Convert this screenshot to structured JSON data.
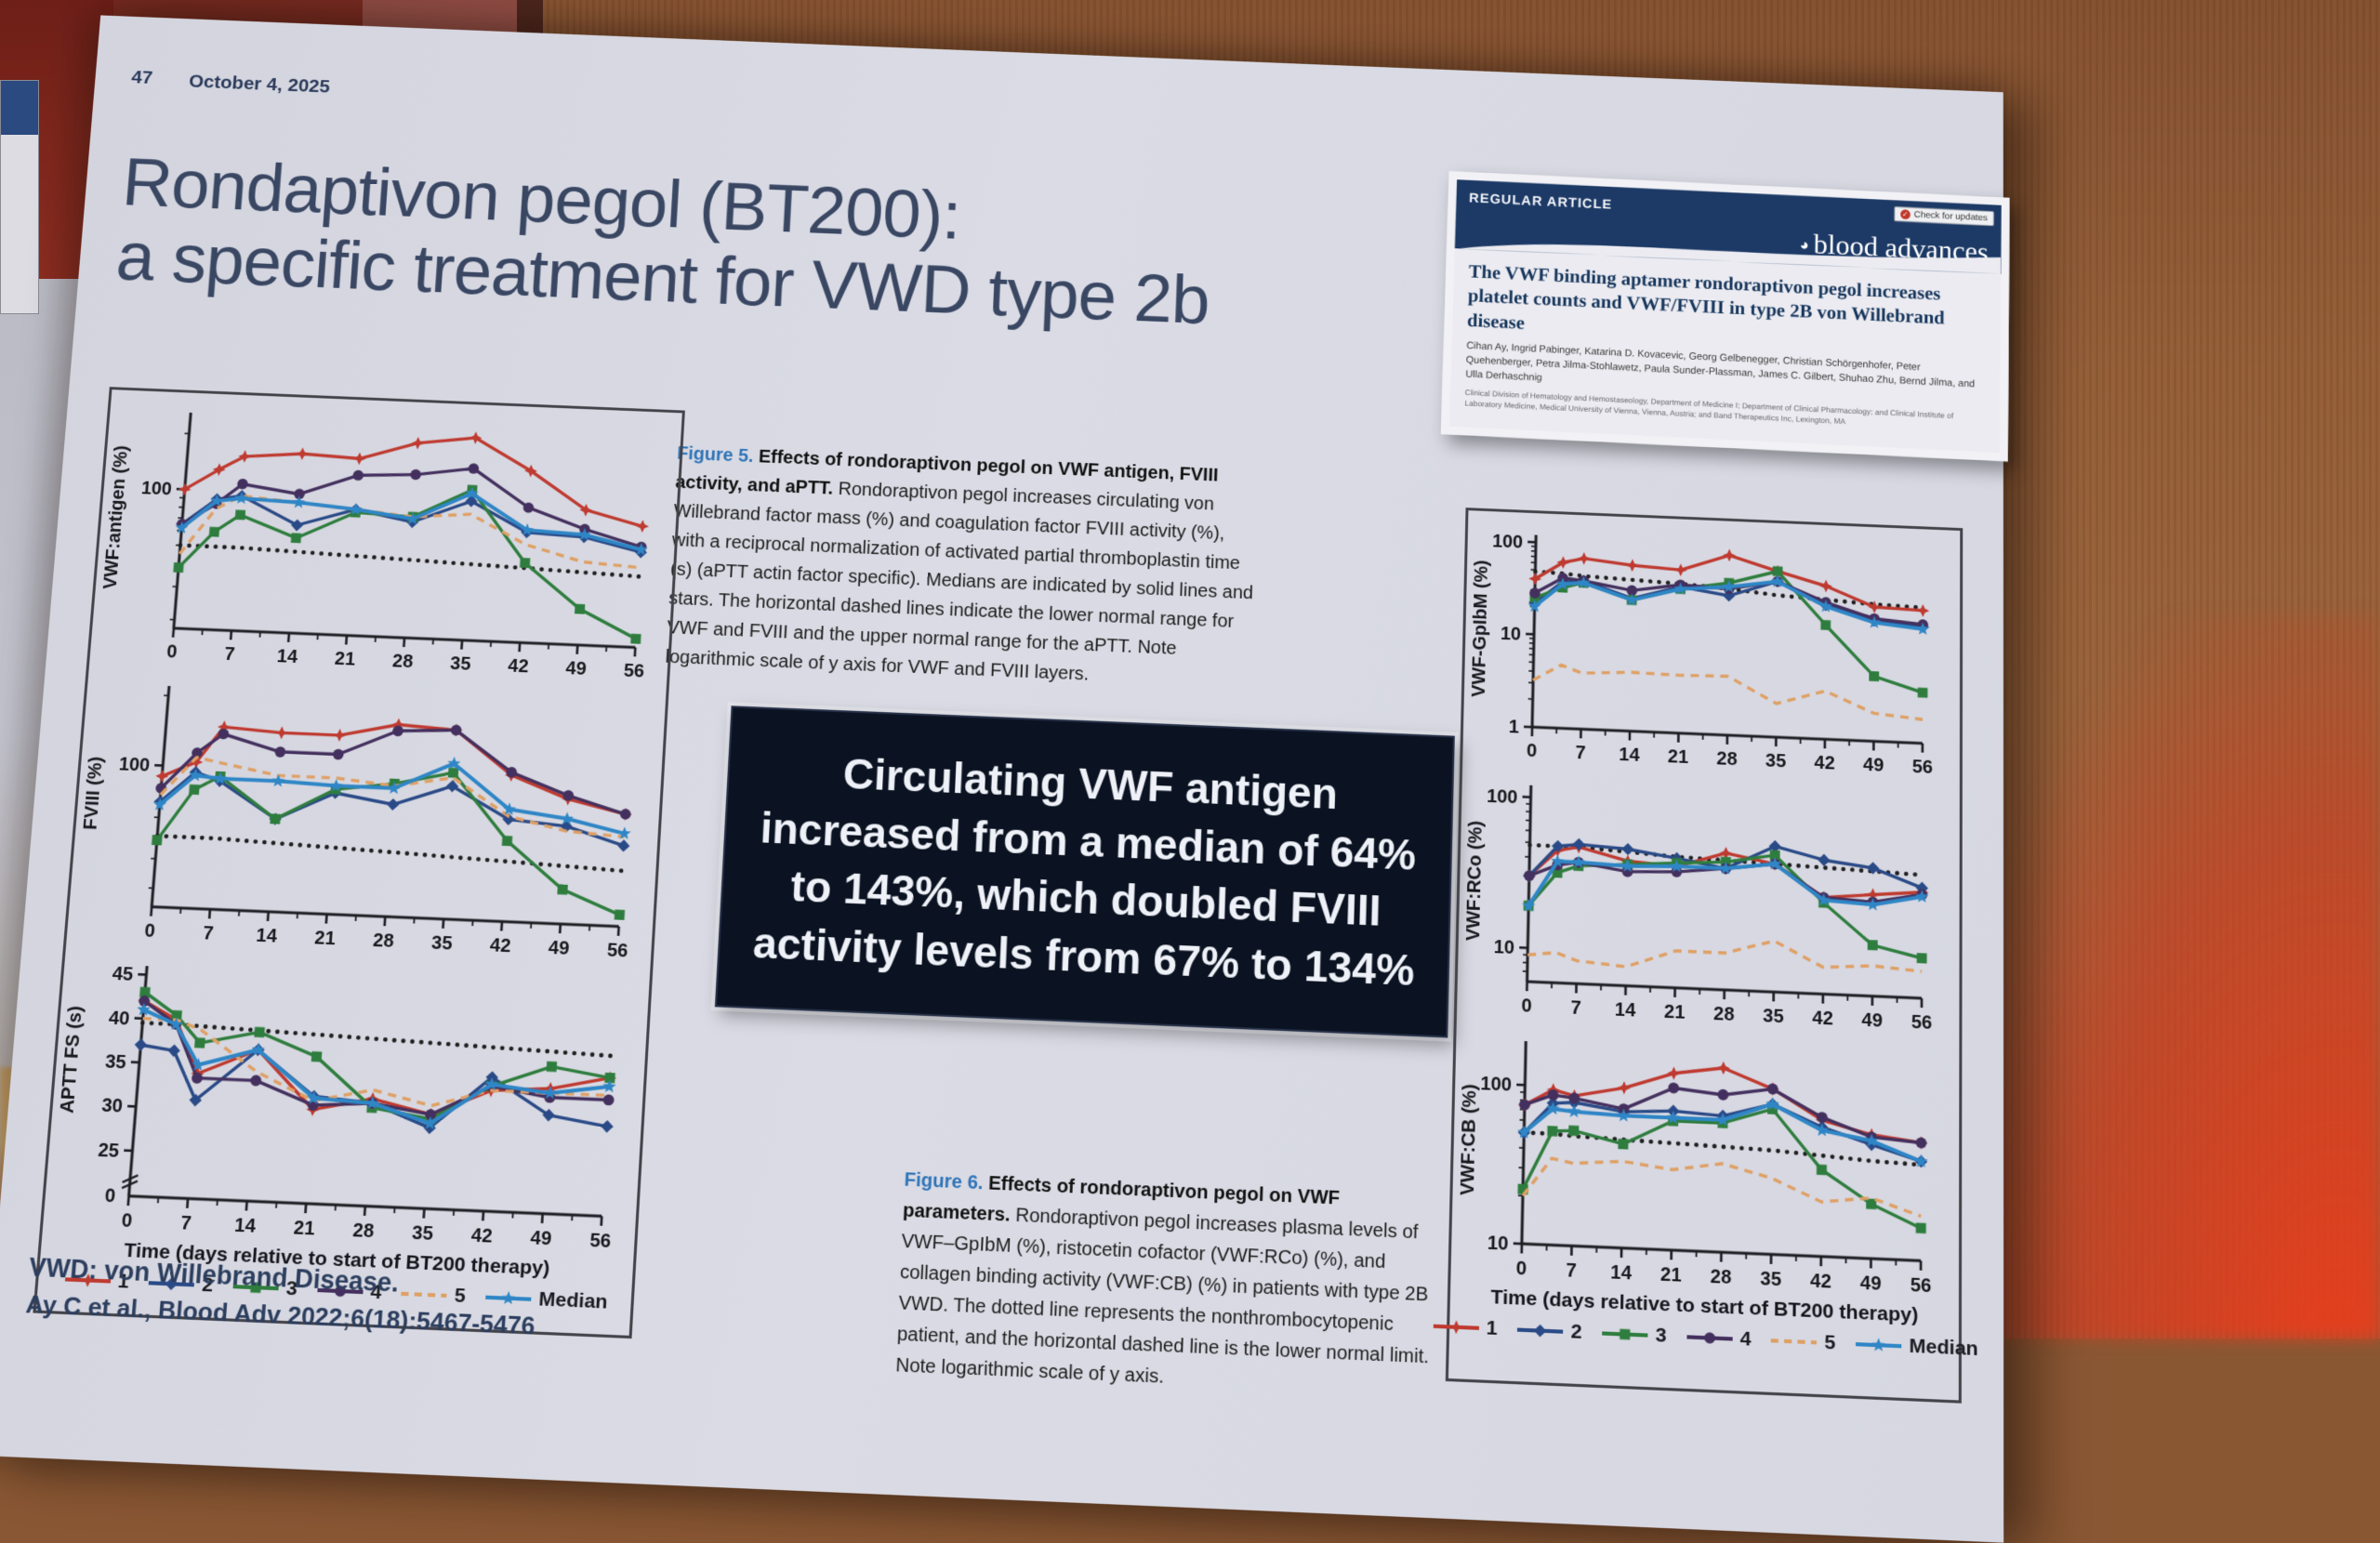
{
  "slide": {
    "number": "47",
    "date": "October 4, 2025",
    "title_line1": "Rondaptivon pegol (BT200):",
    "title_line2": "a specific treatment for VWD type 2b",
    "footnote1": "VWD: von Willebrand Disease.",
    "footnote2": "Ay C et al., Blood Adv 2022;6(18):5467-5476"
  },
  "journal_card": {
    "kicker": "REGULAR ARTICLE",
    "brand": "blood advances",
    "badge": "Check for updates",
    "title": "The VWF binding aptamer rondoraptivon pegol increases platelet counts and VWF/FVIII in type 2B von Willebrand disease",
    "authors": "Cihan Ay, Ingrid Pabinger, Katarina D. Kovacevic, Georg Gelbenegger, Christian Schörgenhofer, Peter Quehenberger, Petra Jilma-Stohlawetz, Paula Sunder-Plassman, James C. Gilbert, Shuhao Zhu, Bernd Jilma, and Ulla Derhaschnig",
    "affiliations": "Clinical Division of Hematology and Hemostaseology, Department of Medicine I; Department of Clinical Pharmacology; and Clinical Institute of Laboratory Medicine, Medical University of Vienna, Vienna, Austria; and Band Therapeutics Inc, Lexington, MA"
  },
  "figure5_caption": {
    "label": "Figure 5. ",
    "heading": "Effects of rondoraptivon pegol on VWF antigen, FVIII activity, and aPTT. ",
    "body": "Rondoraptivon pegol increases circulating von Willebrand factor mass (%) and coagulation factor FVIII activity (%), with a reciprocal normalization of activated partial thromboplastin time (s) (aPTT actin factor specific). Medians are indicated by solid lines and stars. The horizontal dashed lines indicate the lower normal range for VWF and FVIII and the upper normal range for the aPTT. Note logarithmic scale of y axis for VWF and FVIII layers."
  },
  "figure6_caption": {
    "label": "Figure 6. ",
    "heading": "Effects of rondoraptivon pegol on VWF parameters. ",
    "body": "Rondoraptivon pegol increases plasma levels of VWF–GpIbM (%), ristocetin cofactor (VWF:RCo) (%), and collagen binding activity (VWF:CB) (%) in patients with type 2B VWD. The dotted line represents the nonthrombocytopenic patient, and the horizontal dashed line is the lower normal limit. Note logarithmic scale of y axis."
  },
  "callout": {
    "text": "Circulating VWF antigen increased from a median of 64% to 143%, which doubled FVIII activity levels from 67% to 134%"
  },
  "charts": {
    "x_axis_label": "Time (days relative to start of BT200 therapy)",
    "x": [
      0,
      4,
      7,
      14,
      21,
      28,
      35,
      42,
      49,
      56
    ],
    "xticks": [
      0,
      7,
      14,
      21,
      28,
      35,
      42,
      49,
      56
    ]
  },
  "legend": {
    "items": [
      {
        "label": "1",
        "color": "#bf3a30",
        "marker": "burst",
        "dashed": false
      },
      {
        "label": "2",
        "color": "#2a4a87",
        "marker": "diamond",
        "dashed": false
      },
      {
        "label": "3",
        "color": "#2f7d3e",
        "marker": "square",
        "dashed": false
      },
      {
        "label": "4",
        "color": "#44305e",
        "marker": "circle",
        "dashed": false
      },
      {
        "label": "5",
        "color": "#dfa065",
        "marker": "none",
        "dashed": true
      },
      {
        "label": "Median",
        "color": "#2f86c6",
        "marker": "star",
        "dashed": false
      }
    ]
  },
  "chart_data": [
    {
      "container": "c-antigen",
      "type": "line",
      "ylabel": "VWF:antigen (%)",
      "scale": "log",
      "ylim": [
        18,
        260
      ],
      "yticks": [
        100
      ],
      "ref_dotted": [
        50,
        50,
        50,
        49,
        48,
        47,
        46,
        45,
        44,
        43
      ],
      "series": [
        {
          "name": "1",
          "values": [
            100,
            130,
            155,
            165,
            160,
            200,
            220,
            150,
            95,
            80
          ]
        },
        {
          "name": "2",
          "values": [
            65,
            90,
            95,
            68,
            85,
            75,
            100,
            70,
            68,
            58
          ]
        },
        {
          "name": "3",
          "values": [
            38,
            60,
            75,
            58,
            82,
            80,
            115,
            48,
            28,
            20
          ]
        },
        {
          "name": "4",
          "values": [
            65,
            85,
            110,
            100,
            130,
            135,
            150,
            95,
            75,
            62
          ]
        },
        {
          "name": "5",
          "values": [
            45,
            80,
            95,
            90,
            85,
            80,
            85,
            60,
            50,
            48
          ]
        },
        {
          "name": "Median",
          "values": [
            62,
            88,
            92,
            90,
            85,
            78,
            110,
            72,
            70,
            60
          ]
        }
      ]
    },
    {
      "container": "c-fviii",
      "type": "line",
      "ylabel": "FVIII (%)",
      "scale": "log",
      "ylim": [
        25,
        220
      ],
      "yticks": [
        100
      ],
      "ref_dotted": [
        50,
        50,
        50,
        49,
        48,
        47,
        46,
        45,
        44,
        43
      ],
      "series": [
        {
          "name": "1",
          "values": [
            90,
            105,
            150,
            145,
            145,
            165,
            160,
            105,
            85,
            75
          ]
        },
        {
          "name": "2",
          "values": [
            70,
            95,
            88,
            62,
            82,
            75,
            92,
            68,
            65,
            55
          ]
        },
        {
          "name": "3",
          "values": [
            48,
            80,
            92,
            62,
            85,
            92,
            105,
            55,
            35,
            28
          ]
        },
        {
          "name": "4",
          "values": [
            80,
            115,
            140,
            120,
            120,
            155,
            160,
            108,
            88,
            75
          ]
        },
        {
          "name": "5",
          "values": [
            75,
            110,
            105,
            95,
            95,
            90,
            100,
            70,
            62,
            60
          ]
        },
        {
          "name": "Median",
          "values": [
            68,
            92,
            90,
            90,
            88,
            88,
            115,
            75,
            70,
            62
          ]
        }
      ]
    },
    {
      "container": "c-aptt",
      "type": "line",
      "ylabel": "APTT FS (s)",
      "scale": "linear",
      "ylim": [
        24,
        46
      ],
      "yticks": [
        25,
        30,
        35,
        40,
        45
      ],
      "axis_break": true,
      "ref_dotted": [
        39.5,
        39.5,
        39.4,
        39.2,
        39.0,
        38.8,
        38.6,
        38.4,
        38.2,
        38.0
      ],
      "series": [
        {
          "name": "1",
          "values": [
            42,
            40,
            34,
            37,
            30.5,
            32,
            30.5,
            33.5,
            34,
            35.5
          ]
        },
        {
          "name": "2",
          "values": [
            37,
            36.5,
            31,
            37,
            32,
            31.5,
            29,
            35,
            31,
            30
          ]
        },
        {
          "name": "3",
          "values": [
            43,
            40.5,
            37.5,
            39,
            36.5,
            31,
            30,
            34,
            36.5,
            35.5
          ]
        },
        {
          "name": "4",
          "values": [
            42,
            39.5,
            33.5,
            33.5,
            31,
            31.5,
            30.5,
            34,
            33,
            33
          ]
        },
        {
          "name": "5",
          "values": [
            40,
            40,
            39,
            34.5,
            31.5,
            33,
            31.5,
            33.5,
            33.5,
            33.5
          ]
        },
        {
          "name": "Median",
          "values": [
            41,
            39.5,
            35,
            37,
            31.8,
            31.5,
            29.5,
            34.2,
            33.5,
            34.5
          ]
        }
      ]
    },
    {
      "container": "c-gpibm",
      "type": "line",
      "ylabel": "VWF-GpIbM (%)",
      "scale": "log",
      "ylim": [
        1,
        120
      ],
      "yticks": [
        1,
        10,
        100
      ],
      "ref_dotted": [
        48,
        47,
        45,
        43,
        41,
        38,
        34,
        32,
        30,
        29
      ],
      "series": [
        {
          "name": "1",
          "values": [
            40,
            62,
            70,
            62,
            58,
            88,
            62,
            45,
            28,
            27
          ]
        },
        {
          "name": "2",
          "values": [
            22,
            38,
            40,
            27,
            38,
            32,
            48,
            28,
            20,
            18
          ]
        },
        {
          "name": "3",
          "values": [
            25,
            33,
            38,
            26,
            36,
            44,
            62,
            17,
            5,
            3.5
          ]
        },
        {
          "name": "4",
          "values": [
            28,
            42,
            40,
            33,
            40,
            38,
            48,
            30,
            21,
            19
          ]
        },
        {
          "name": "5",
          "values": [
            3.2,
            4.8,
            4,
            4.3,
            4.2,
            4.3,
            2.3,
            3.3,
            2,
            1.8
          ]
        },
        {
          "name": "Median",
          "values": [
            20,
            36,
            38,
            26,
            36,
            40,
            48,
            27,
            19,
            17
          ]
        }
      ]
    },
    {
      "container": "c-rco",
      "type": "line",
      "ylabel": "VWF:RCo (%)",
      "scale": "log",
      "ylim": [
        6,
        120
      ],
      "yticks": [
        10,
        100
      ],
      "ref_dotted": [
        48,
        48,
        48,
        46,
        44,
        43,
        42,
        41,
        40,
        39
      ],
      "series": [
        {
          "name": "1",
          "values": [
            30,
            45,
            48,
            40,
            38,
            48,
            42,
            26,
            28,
            30
          ]
        },
        {
          "name": "2",
          "values": [
            30,
            48,
            50,
            48,
            43,
            38,
            55,
            46,
            42,
            32
          ]
        },
        {
          "name": "3",
          "values": [
            19,
            32,
            36,
            38,
            40,
            42,
            48,
            24,
            13,
            11
          ]
        },
        {
          "name": "4",
          "values": [
            30,
            36,
            38,
            34,
            35,
            38,
            42,
            26,
            25,
            29
          ]
        },
        {
          "name": "5",
          "values": [
            9,
            9.5,
            8.5,
            8,
            10.5,
            10.5,
            13,
            9,
            9.5,
            9
          ]
        },
        {
          "name": "Median",
          "values": [
            19,
            38,
            38,
            37,
            38,
            38,
            42,
            25,
            24,
            28
          ]
        }
      ]
    },
    {
      "container": "c-cb",
      "type": "line",
      "ylabel": "VWF:CB (%)",
      "scale": "log",
      "ylim": [
        10,
        190
      ],
      "yticks": [
        10,
        100
      ],
      "ref_dotted": [
        50,
        50,
        49,
        48,
        47,
        46,
        45,
        43,
        41,
        40
      ],
      "series": [
        {
          "name": "1",
          "values": [
            75,
            95,
            88,
            102,
            130,
            145,
            110,
            72,
            60,
            55
          ]
        },
        {
          "name": "2",
          "values": [
            50,
            78,
            80,
            72,
            75,
            72,
            88,
            65,
            52,
            42
          ]
        },
        {
          "name": "3",
          "values": [
            22,
            52,
            53,
            45,
            65,
            65,
            82,
            35,
            22,
            16
          ]
        },
        {
          "name": "4",
          "values": [
            75,
            88,
            85,
            75,
            105,
            98,
            110,
            75,
            58,
            55
          ]
        },
        {
          "name": "5",
          "values": [
            20,
            35,
            33,
            35,
            32,
            36,
            30,
            22,
            24,
            19
          ]
        },
        {
          "name": "Median",
          "values": [
            50,
            72,
            70,
            68,
            68,
            68,
            88,
            62,
            55,
            42
          ]
        }
      ]
    }
  ]
}
